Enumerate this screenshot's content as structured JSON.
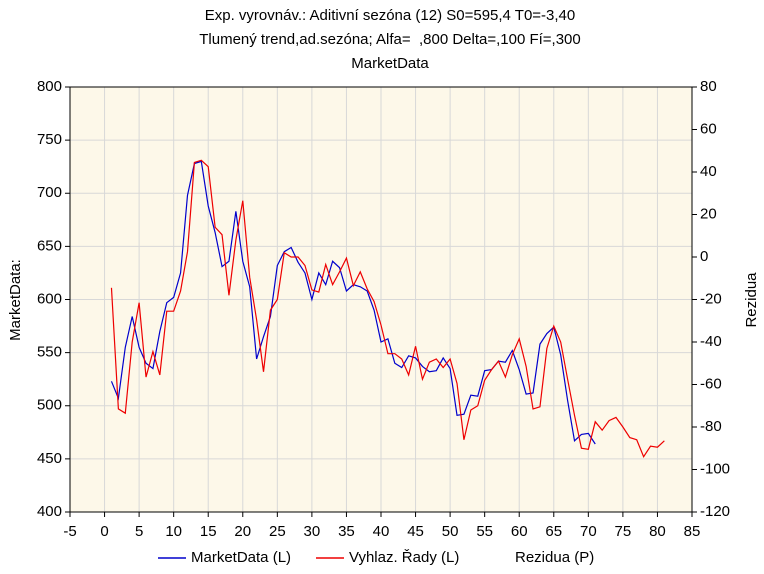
{
  "chart_data": {
    "type": "line",
    "title_lines": [
      "Exp. vyrovnáv.: Aditivní sezóna (12) S0=595,4 T0=-3,40",
      "Tlumený trend,ad.sezóna; Alfa=  ,800 Delta=,100 Fí=,300",
      "MarketData"
    ],
    "y_label": "MarketData:",
    "y2_label": "Rezidua",
    "xlim": [
      -5,
      85
    ],
    "xticks": [
      -5,
      0,
      5,
      10,
      15,
      20,
      25,
      30,
      35,
      40,
      45,
      50,
      55,
      60,
      65,
      70,
      75,
      80,
      85
    ],
    "ylim": [
      400,
      800
    ],
    "yticks": [
      400,
      450,
      500,
      550,
      600,
      650,
      700,
      750,
      800
    ],
    "y2lim": [
      -120,
      80
    ],
    "y2ticks": [
      -120,
      -100,
      -80,
      -60,
      -40,
      -20,
      0,
      20,
      40,
      60,
      80
    ],
    "grid": true,
    "legend": "bottom",
    "series": [
      {
        "name": "MarketData (L)",
        "color": "#0000cc",
        "x": [
          1,
          2,
          3,
          4,
          5,
          6,
          7,
          8,
          9,
          10,
          11,
          12,
          13,
          14,
          15,
          16,
          17,
          18,
          19,
          20,
          21,
          22,
          23,
          24,
          25,
          26,
          27,
          28,
          29,
          30,
          31,
          32,
          33,
          34,
          35,
          36,
          37,
          38,
          39,
          40,
          41,
          42,
          43,
          44,
          45,
          46,
          47,
          48,
          49,
          50,
          51,
          52,
          53,
          54,
          55,
          56,
          57,
          58,
          59,
          60,
          61,
          62,
          63,
          64,
          65,
          66,
          67,
          68,
          69,
          70,
          71
        ],
        "values": [
          523,
          507,
          555,
          584,
          555,
          540,
          535,
          570,
          597,
          602,
          625,
          698,
          728,
          730,
          688,
          663,
          631,
          636,
          683,
          636,
          612,
          544,
          565,
          584,
          632,
          645,
          649,
          635,
          625,
          600,
          625,
          614,
          636,
          630,
          608,
          614,
          612,
          608,
          590,
          560,
          563,
          540,
          536,
          547,
          545,
          537,
          532,
          533,
          545,
          535,
          491,
          492,
          510,
          509,
          533,
          534,
          542,
          541,
          552,
          534,
          511,
          512,
          558,
          568,
          574,
          548,
          505,
          467,
          473,
          474,
          464
        ]
      },
      {
        "name": "Vyhlaz. Řady (L)",
        "color": "#ee0000",
        "x": [
          1,
          2,
          3,
          4,
          5,
          6,
          7,
          8,
          9,
          10,
          11,
          12,
          13,
          14,
          15,
          16,
          17,
          18,
          19,
          20,
          21,
          22,
          23,
          24,
          25,
          26,
          27,
          28,
          29,
          30,
          31,
          32,
          33,
          34,
          35,
          36,
          37,
          38,
          39,
          40,
          41,
          42,
          43,
          44,
          45,
          46,
          47,
          48,
          49,
          50,
          51,
          52,
          53,
          54,
          55,
          56,
          57,
          58,
          59,
          60,
          61,
          62,
          63,
          64,
          65,
          66,
          67,
          68,
          69,
          70,
          71,
          72,
          73,
          74,
          75,
          76,
          77,
          78,
          79,
          80,
          81
        ],
        "values": [
          611,
          497,
          493,
          560,
          597,
          527,
          551,
          529,
          589,
          589,
          608,
          645,
          729,
          731,
          725,
          668,
          661,
          604,
          656,
          693,
          621,
          581,
          532,
          590,
          600,
          644,
          640,
          640,
          632,
          609,
          607,
          633,
          614,
          626,
          639,
          613,
          626,
          610,
          598,
          576,
          549,
          549,
          544,
          529,
          556,
          525,
          541,
          544,
          536,
          544,
          521,
          468,
          496,
          500,
          524,
          534,
          542,
          527,
          548,
          563,
          537,
          497,
          499,
          554,
          575,
          560,
          525,
          491,
          460,
          459,
          485,
          477,
          486,
          489,
          480,
          470,
          468,
          452,
          462,
          461,
          467
        ]
      },
      {
        "name": "Rezidua (P)",
        "axis": "y2",
        "x": [],
        "values": []
      }
    ]
  }
}
